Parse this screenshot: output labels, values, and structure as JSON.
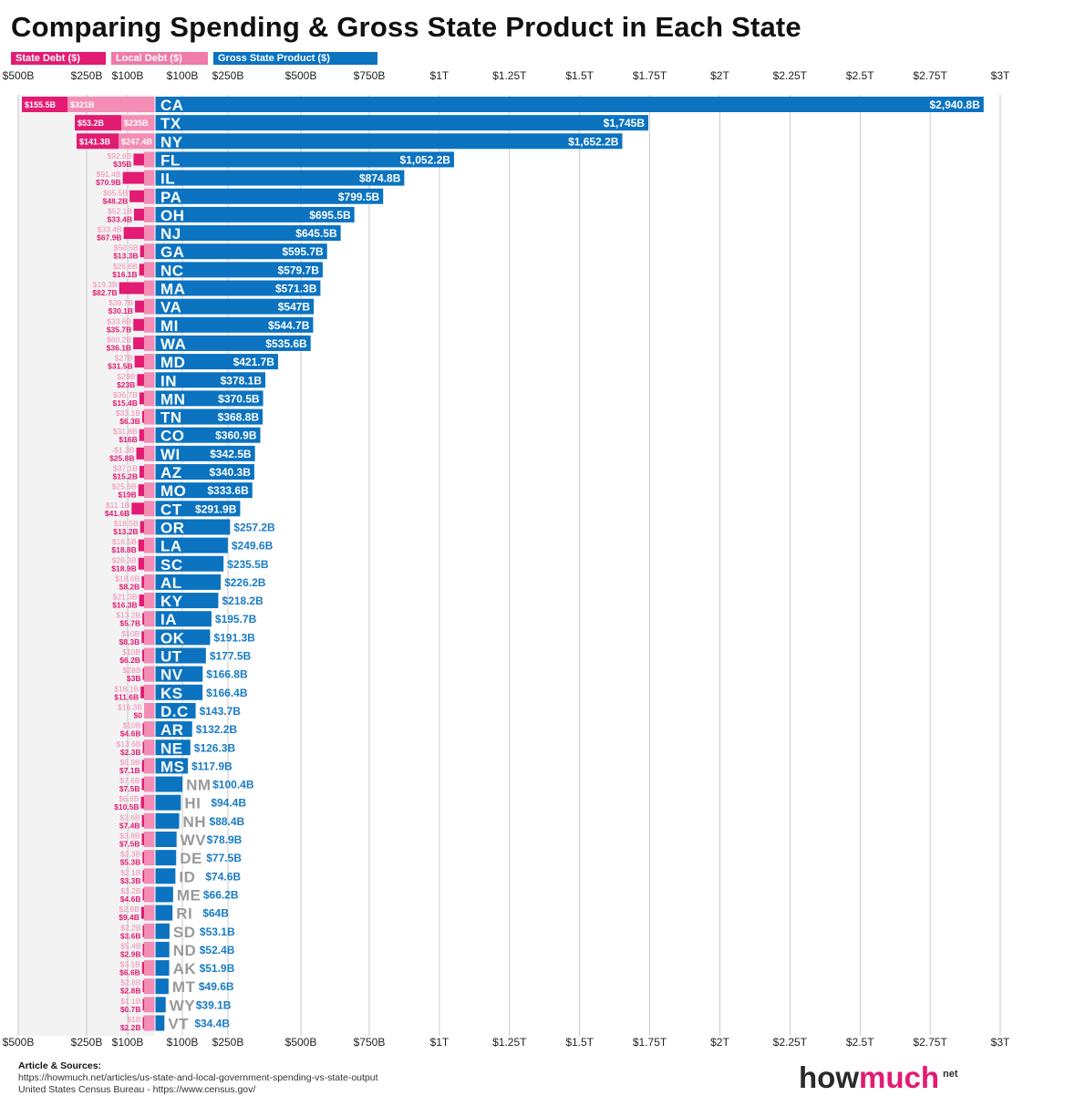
{
  "title": "Comparing Spending & Gross State Product in Each State",
  "legend": [
    {
      "key": "state_debt",
      "label": "State Debt ($)",
      "color": "#e21b73"
    },
    {
      "key": "local_debt",
      "label": "Local Debt ($)",
      "color": "#f07aa8"
    },
    {
      "key": "gsp",
      "label": "Gross State Product ($)",
      "color": "#0b73c0"
    }
  ],
  "colors": {
    "state_debt": "#e21b73",
    "local_debt": "#f38db5",
    "gsp": "#0b73c0",
    "gsp_text_outside": "#1a7cc2",
    "small_state_label": "#9a9a9a",
    "grid": "#bdbdbd",
    "debt_bg": "#f3f3f3"
  },
  "chart_data": {
    "type": "bar",
    "orientation": "horizontal",
    "title": "Comparing Spending & Gross State Product in Each State",
    "left_axis": {
      "ticks": [
        "$500B",
        "$250B",
        "$100B"
      ],
      "values": [
        500,
        250,
        100
      ],
      "unit": "billion USD",
      "direction": "leftward"
    },
    "right_axis": {
      "ticks": [
        "$100B",
        "$250B",
        "$500B",
        "$750B",
        "$1T",
        "$1.25T",
        "$1.5T",
        "$1.75T",
        "$2T",
        "$2.25T",
        "$2.5T",
        "$2.75T",
        "$3T"
      ],
      "values": [
        100,
        250,
        500,
        750,
        1000,
        1250,
        1500,
        1750,
        2000,
        2250,
        2500,
        2750,
        3000
      ],
      "unit": "billion USD"
    },
    "categories": [
      "CA",
      "TX",
      "NY",
      "FL",
      "IL",
      "PA",
      "OH",
      "NJ",
      "GA",
      "NC",
      "MA",
      "VA",
      "MI",
      "WA",
      "MD",
      "IN",
      "MN",
      "TN",
      "CO",
      "WI",
      "AZ",
      "MO",
      "CT",
      "OR",
      "LA",
      "SC",
      "AL",
      "KY",
      "IA",
      "OK",
      "UT",
      "NV",
      "KS",
      "D.C",
      "AR",
      "NE",
      "MS",
      "NM",
      "HI",
      "NH",
      "WV",
      "DE",
      "ID",
      "ME",
      "RI",
      "SD",
      "ND",
      "AK",
      "MT",
      "WY",
      "VT"
    ],
    "series": [
      {
        "name": "Gross State Product ($)",
        "key": "gsp",
        "values": [
          2940.8,
          1745,
          1652.2,
          1052.2,
          874.8,
          799.5,
          695.5,
          645.5,
          595.7,
          579.7,
          571.3,
          547,
          544.7,
          535.6,
          421.7,
          378.1,
          370.5,
          368.8,
          360.9,
          342.5,
          340.3,
          333.6,
          291.9,
          257.2,
          249.6,
          235.5,
          226.2,
          218.2,
          195.7,
          191.3,
          177.5,
          166.8,
          166.4,
          143.7,
          132.2,
          126.3,
          117.9,
          100.4,
          94.4,
          88.4,
          78.9,
          77.5,
          74.6,
          66.2,
          64,
          53.1,
          52.4,
          51.9,
          49.6,
          39.1,
          34.4
        ],
        "labels": [
          "$2,940.8B",
          "$1,745B",
          "$1,652.2B",
          "$1,052.2B",
          "$874.8B",
          "$799.5B",
          "$695.5B",
          "$645.5B",
          "$595.7B",
          "$579.7B",
          "$571.3B",
          "$547B",
          "$544.7B",
          "$535.6B",
          "$421.7B",
          "$378.1B",
          "$370.5B",
          "$368.8B",
          "$360.9B",
          "$342.5B",
          "$340.3B",
          "$333.6B",
          "$291.9B",
          "$257.2B",
          "$249.6B",
          "$235.5B",
          "$226.2B",
          "$218.2B",
          "$195.7B",
          "$191.3B",
          "$177.5B",
          "$166.8B",
          "$166.4B",
          "$143.7B",
          "$132.2B",
          "$126.3B",
          "$117.9B",
          "$100.4B",
          "$94.4B",
          "$88.4B",
          "$78.9B",
          "$77.5B",
          "$74.6B",
          "$66.2B",
          "$64B",
          "$53.1B",
          "$52.4B",
          "$51.9B",
          "$49.6B",
          "$39.1B",
          "$34.4B"
        ]
      },
      {
        "name": "Local Debt ($)",
        "key": "local_debt",
        "values": [
          321,
          235,
          247.4,
          92.6,
          91.4,
          65.5,
          52.1,
          33.4,
          50.5,
          26.6,
          19.3,
          39.7,
          33.8,
          60.2,
          27,
          29,
          36.7,
          33.1,
          31.8,
          -1.3,
          37.1,
          25.6,
          11.1,
          18.5,
          16.5,
          26.3,
          18.6,
          21.3,
          13.2,
          10,
          10,
          28,
          18.1,
          16.3,
          10,
          13.6,
          6.9,
          7.6,
          6.6,
          2.6,
          3.8,
          2.3,
          2.1,
          3.2,
          2.8,
          2.2,
          5.4,
          3.1,
          2.8,
          1.1,
          1
        ],
        "labels": [
          "$321B",
          "$235B",
          "$247.4B",
          "$92.6B",
          "$91.4B",
          "$65.5B",
          "$52.1B",
          "$33.4B",
          "$50.5B",
          "$26.6B",
          "$19.3B",
          "$39.7B",
          "$33.8B",
          "$60.2B",
          "$27B",
          "$29B",
          "$36.7B",
          "$33.1B",
          "$31.8B",
          "-$1.3B",
          "$37.1B",
          "$25.6B",
          "$11.1B",
          "$18.5B",
          "$16.5B",
          "$26.3B",
          "$18.6B",
          "$21.3B",
          "$13.2B",
          "$10B",
          "$10B",
          "$28B",
          "$18.1B",
          "$16.3B",
          "$10B",
          "$13.6B",
          "$6.9B",
          "$7.6B",
          "$6.6B",
          "$2.6B",
          "$3.8B",
          "$2.3B",
          "$2.1B",
          "$3.2B",
          "$2.8B",
          "$2.2B",
          "$5.4B",
          "$3.1B",
          "$2.8B",
          "$1.1B",
          "$1B"
        ]
      },
      {
        "name": "State Debt ($)",
        "key": "state_debt",
        "values": [
          155.5,
          53.2,
          141.3,
          35,
          70.9,
          48.2,
          33.4,
          67.9,
          13.3,
          16.1,
          82.7,
          30.1,
          35.7,
          36.1,
          31.5,
          23,
          15.4,
          6.3,
          16,
          25.8,
          15.2,
          19,
          41.6,
          13.2,
          18.8,
          18.9,
          8.2,
          16.3,
          5.7,
          8.3,
          6.2,
          3,
          11.6,
          0,
          4.6,
          2.3,
          7.1,
          7.5,
          10.5,
          7.4,
          7.5,
          5.3,
          3.3,
          4.6,
          9.4,
          3.6,
          2.9,
          6.6,
          2.8,
          0.7,
          2.2
        ],
        "labels": [
          "$155.5B",
          "$53.2B",
          "$141.3B",
          "$35B",
          "$70.9B",
          "$48.2B",
          "$33.4B",
          "$67.9B",
          "$13.3B",
          "$16.1B",
          "$82.7B",
          "$30.1B",
          "$35.7B",
          "$36.1B",
          "$31.5B",
          "$23B",
          "$15.4B",
          "$6.3B",
          "$16B",
          "$25.8B",
          "$15.2B",
          "$19B",
          "$41.6B",
          "$13.2B",
          "$18.8B",
          "$18.9B",
          "$8.2B",
          "$16.3B",
          "$5.7B",
          "$8.3B",
          "$6.2B",
          "$3B",
          "$11.6B",
          "$0",
          "$4.6B",
          "$2.3B",
          "$7.1B",
          "$7.5B",
          "$10.5B",
          "$7.4B",
          "$7.5B",
          "$5.3B",
          "$3.3B",
          "$4.6B",
          "$9.4B",
          "$3.6B",
          "$2.9B",
          "$6.6B",
          "$2.8B",
          "$0.7B",
          "$2.2B"
        ]
      }
    ]
  },
  "sources": {
    "title": "Article & Sources:",
    "lines": [
      "https://howmuch.net/articles/us-state-and-local-government-spending-vs-state-output",
      "United States Census Bureau - https://www.census.gov/"
    ]
  },
  "brand": {
    "name_part1": "how",
    "name_part2": "much",
    "suffix": "net"
  }
}
